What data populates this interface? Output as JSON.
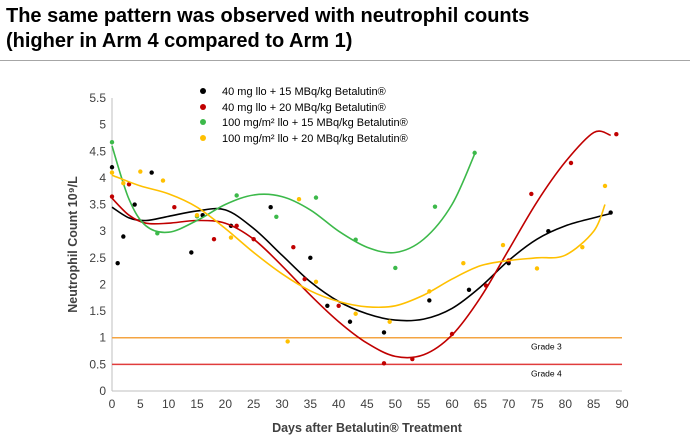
{
  "header": {
    "title_line1": "The same pattern was observed with neutrophil counts",
    "title_line2": "(higher in Arm 4 compared to Arm 1)"
  },
  "chart_data": {
    "type": "scatter",
    "title": "",
    "xlabel": "Days after Betalutin® Treatment",
    "ylabel": "Neutrophil Count 10⁹/L",
    "xlim": [
      0,
      90
    ],
    "ylim": [
      0,
      5.5
    ],
    "xticks": [
      0,
      5,
      10,
      15,
      20,
      25,
      30,
      35,
      40,
      45,
      50,
      55,
      60,
      65,
      70,
      75,
      80,
      85,
      90
    ],
    "yticks": [
      0,
      0.5,
      1,
      1.5,
      2,
      2.5,
      3,
      3.5,
      4,
      4.5,
      5,
      5.5
    ],
    "tick_labels_x": [
      "0",
      "5",
      "10",
      "15",
      "20",
      "25",
      "30",
      "35",
      "40",
      "45",
      "50",
      "55",
      "60",
      "65",
      "70",
      "75",
      "80",
      "85",
      "90"
    ],
    "tick_labels_y": [
      "0",
      "0.5",
      "1",
      "1.5",
      "2",
      "2.5",
      "3",
      "3.5",
      "4",
      "4.5",
      "5",
      "5.5"
    ],
    "grid": false,
    "legend_position": "top-center",
    "reference_lines": [
      {
        "label": "Grade 3",
        "y": 1.0,
        "color": "#f4a442"
      },
      {
        "label": "Grade 4",
        "y": 0.5,
        "color": "#e03c3c"
      }
    ],
    "series": [
      {
        "name": "40 mg llo + 15 MBq/kg Betalutin®",
        "color": "#000000",
        "points": [
          [
            0,
            4.2
          ],
          [
            1,
            2.4
          ],
          [
            2,
            2.9
          ],
          [
            4,
            3.5
          ],
          [
            7,
            4.1
          ],
          [
            14,
            2.6
          ],
          [
            16,
            3.3
          ],
          [
            21,
            3.1
          ],
          [
            28,
            3.45
          ],
          [
            35,
            2.5
          ],
          [
            38,
            1.6
          ],
          [
            42,
            1.3
          ],
          [
            48,
            1.1
          ],
          [
            56,
            1.7
          ],
          [
            63,
            1.9
          ],
          [
            70,
            2.4
          ],
          [
            77,
            3.0
          ],
          [
            88,
            3.35
          ]
        ],
        "trend": [
          [
            0,
            3.45
          ],
          [
            3,
            3.25
          ],
          [
            6,
            3.2
          ],
          [
            10,
            3.28
          ],
          [
            15,
            3.38
          ],
          [
            20,
            3.4
          ],
          [
            25,
            3.05
          ],
          [
            30,
            2.55
          ],
          [
            35,
            2.05
          ],
          [
            40,
            1.68
          ],
          [
            45,
            1.45
          ],
          [
            50,
            1.33
          ],
          [
            55,
            1.35
          ],
          [
            60,
            1.55
          ],
          [
            65,
            1.95
          ],
          [
            70,
            2.45
          ],
          [
            75,
            2.85
          ],
          [
            80,
            3.1
          ],
          [
            85,
            3.25
          ],
          [
            88,
            3.33
          ]
        ]
      },
      {
        "name": "40 mg llo + 20 MBq/kg Betalutin®",
        "color": "#c00000",
        "points": [
          [
            0,
            3.65
          ],
          [
            3,
            3.88
          ],
          [
            11,
            3.45
          ],
          [
            18,
            2.85
          ],
          [
            22,
            3.1
          ],
          [
            25,
            2.85
          ],
          [
            32,
            2.7
          ],
          [
            34,
            2.1
          ],
          [
            40,
            1.6
          ],
          [
            48,
            0.52
          ],
          [
            53,
            0.6
          ],
          [
            60,
            1.07
          ],
          [
            66,
            1.98
          ],
          [
            70,
            2.45
          ],
          [
            74,
            3.7
          ],
          [
            81,
            4.28
          ],
          [
            89,
            4.82
          ]
        ],
        "trend": [
          [
            0,
            3.62
          ],
          [
            3,
            3.3
          ],
          [
            6,
            3.15
          ],
          [
            10,
            3.15
          ],
          [
            15,
            3.2
          ],
          [
            20,
            3.15
          ],
          [
            25,
            2.85
          ],
          [
            30,
            2.35
          ],
          [
            35,
            1.8
          ],
          [
            40,
            1.3
          ],
          [
            45,
            0.9
          ],
          [
            50,
            0.65
          ],
          [
            55,
            0.68
          ],
          [
            60,
            1.05
          ],
          [
            65,
            1.75
          ],
          [
            70,
            2.65
          ],
          [
            75,
            3.55
          ],
          [
            80,
            4.3
          ],
          [
            85,
            4.85
          ],
          [
            88,
            4.8
          ]
        ]
      },
      {
        "name": "100 mg/m² llo + 15 MBq/kg Betalutin®",
        "color": "#3cb94a",
        "points": [
          [
            0,
            4.67
          ],
          [
            8,
            2.96
          ],
          [
            15,
            3.28
          ],
          [
            22,
            3.67
          ],
          [
            29,
            3.27
          ],
          [
            36,
            3.63
          ],
          [
            43,
            2.84
          ],
          [
            50,
            2.31
          ],
          [
            57,
            3.46
          ],
          [
            64,
            4.47
          ]
        ],
        "trend": [
          [
            0,
            4.6
          ],
          [
            3,
            3.6
          ],
          [
            6,
            3.1
          ],
          [
            10,
            2.98
          ],
          [
            15,
            3.2
          ],
          [
            20,
            3.5
          ],
          [
            25,
            3.68
          ],
          [
            30,
            3.65
          ],
          [
            35,
            3.4
          ],
          [
            40,
            3.0
          ],
          [
            45,
            2.7
          ],
          [
            50,
            2.6
          ],
          [
            55,
            2.85
          ],
          [
            60,
            3.5
          ],
          [
            64,
            4.45
          ]
        ]
      },
      {
        "name": "100 mg/m² llo + 20 MBq/kg Betalutin®",
        "color": "#ffc000",
        "points": [
          [
            0,
            4.1
          ],
          [
            2,
            3.9
          ],
          [
            5,
            4.12
          ],
          [
            9,
            3.95
          ],
          [
            15,
            3.3
          ],
          [
            21,
            2.88
          ],
          [
            31,
            0.93
          ],
          [
            33,
            3.6
          ],
          [
            36,
            2.05
          ],
          [
            43,
            1.45
          ],
          [
            49,
            1.3
          ],
          [
            56,
            1.87
          ],
          [
            62,
            2.4
          ],
          [
            69,
            2.74
          ],
          [
            75,
            2.3
          ],
          [
            83,
            2.7
          ],
          [
            87,
            3.85
          ]
        ],
        "trend": [
          [
            0,
            4.05
          ],
          [
            5,
            3.85
          ],
          [
            10,
            3.7
          ],
          [
            15,
            3.45
          ],
          [
            20,
            3.05
          ],
          [
            25,
            2.6
          ],
          [
            30,
            2.2
          ],
          [
            35,
            1.88
          ],
          [
            40,
            1.68
          ],
          [
            45,
            1.58
          ],
          [
            50,
            1.6
          ],
          [
            55,
            1.8
          ],
          [
            60,
            2.1
          ],
          [
            65,
            2.35
          ],
          [
            70,
            2.45
          ],
          [
            75,
            2.5
          ],
          [
            80,
            2.55
          ],
          [
            85,
            3.0
          ],
          [
            87,
            3.5
          ]
        ]
      }
    ]
  }
}
